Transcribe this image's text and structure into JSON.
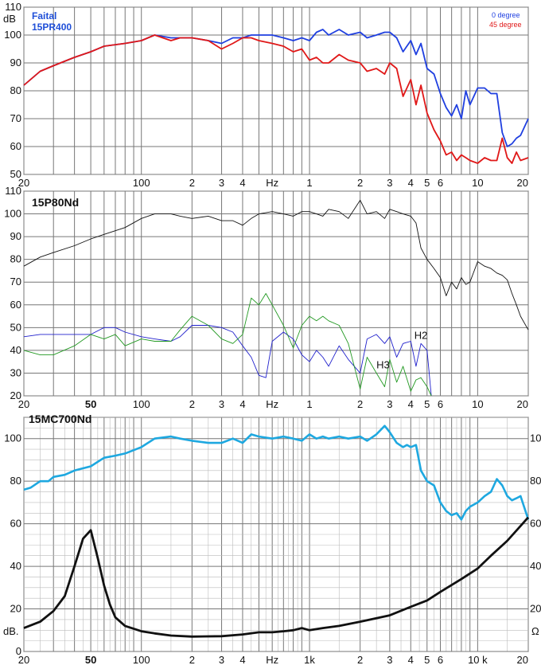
{
  "chart_data": [
    {
      "type": "line",
      "title": "Faital\n15PR400",
      "title_lines": [
        "Faital",
        "15PR400"
      ],
      "ylabel": "dB",
      "ylim": [
        50,
        110
      ],
      "xscale": "log",
      "xlim": [
        20,
        20000
      ],
      "grid": true,
      "legend_placement": "top-right",
      "y_ticks": [
        "50",
        "60",
        "70",
        "80",
        "90",
        "100",
        "110"
      ],
      "x_ticks": [
        {
          "v": 20,
          "t": "20"
        },
        {
          "v": 100,
          "t": "100"
        },
        {
          "v": 200,
          "t": "2"
        },
        {
          "v": 300,
          "t": "3"
        },
        {
          "v": 400,
          "t": "4"
        },
        {
          "v": 600,
          "t": "Hz"
        },
        {
          "v": 1000,
          "t": "1"
        },
        {
          "v": 2000,
          "t": "2"
        },
        {
          "v": 3000,
          "t": "3"
        },
        {
          "v": 4000,
          "t": "4"
        },
        {
          "v": 5000,
          "t": "5"
        },
        {
          "v": 6000,
          "t": "6"
        },
        {
          "v": 10000,
          "t": "10"
        },
        {
          "v": 20000,
          "t": "20"
        }
      ],
      "series": [
        {
          "name": "0 degree",
          "color": "#1f3fe0",
          "x": [
            20,
            25,
            30,
            40,
            50,
            60,
            80,
            100,
            120,
            150,
            170,
            200,
            250,
            300,
            350,
            400,
            450,
            500,
            600,
            700,
            800,
            900,
            1000,
            1100,
            1200,
            1300,
            1500,
            1700,
            2000,
            2200,
            2500,
            2800,
            3000,
            3300,
            3600,
            4000,
            4300,
            4600,
            5000,
            5500,
            6000,
            6500,
            7000,
            7500,
            8000,
            8500,
            9000,
            10000,
            11000,
            12000,
            13000,
            14000,
            15000,
            16000,
            17000,
            18000,
            20000
          ],
          "values": [
            82,
            87,
            89,
            92,
            94,
            96,
            97,
            98,
            100,
            99,
            99,
            99,
            98,
            97,
            99,
            99,
            100,
            100,
            100,
            99,
            98,
            99,
            98,
            101,
            102,
            100,
            102,
            100,
            101,
            99,
            100,
            101,
            101,
            99,
            94,
            98,
            93,
            97,
            88,
            86,
            79,
            74,
            71,
            75,
            70,
            80,
            75,
            81,
            81,
            79,
            79,
            65,
            60,
            61,
            63,
            64,
            70
          ]
        },
        {
          "name": "45 degree",
          "color": "#e01818",
          "x": [
            20,
            25,
            30,
            40,
            50,
            60,
            80,
            100,
            120,
            150,
            170,
            200,
            250,
            300,
            350,
            400,
            450,
            500,
            600,
            700,
            800,
            900,
            1000,
            1100,
            1200,
            1300,
            1500,
            1700,
            2000,
            2200,
            2500,
            2800,
            3000,
            3300,
            3600,
            4000,
            4300,
            4600,
            5000,
            5500,
            6000,
            6500,
            7000,
            7500,
            8000,
            8500,
            9000,
            10000,
            11000,
            12000,
            13000,
            14000,
            15000,
            16000,
            17000,
            18000,
            20000
          ],
          "values": [
            82,
            87,
            89,
            92,
            94,
            96,
            97,
            98,
            100,
            98,
            99,
            99,
            98,
            95,
            97,
            99,
            99,
            98,
            97,
            96,
            94,
            95,
            91,
            92,
            90,
            90,
            93,
            91,
            90,
            87,
            88,
            86,
            90,
            88,
            78,
            84,
            75,
            82,
            72,
            66,
            62,
            57,
            58,
            55,
            57,
            56,
            55,
            54,
            56,
            55,
            55,
            63,
            56,
            54,
            58,
            55,
            56
          ]
        }
      ]
    },
    {
      "type": "line",
      "title": "15P80Nd",
      "ylim": [
        20,
        110
      ],
      "xscale": "log",
      "xlim": [
        20,
        20000
      ],
      "grid": true,
      "y_ticks": [
        "20",
        "30",
        "40",
        "50",
        "60",
        "70",
        "80",
        "90",
        "100",
        "110"
      ],
      "x_ticks": [
        {
          "v": 20,
          "t": "20",
          "b": false
        },
        {
          "v": 50,
          "t": "50",
          "b": true
        },
        {
          "v": 100,
          "t": "100",
          "b": false
        },
        {
          "v": 200,
          "t": "2",
          "b": false
        },
        {
          "v": 300,
          "t": "3",
          "b": false
        },
        {
          "v": 400,
          "t": "4",
          "b": false
        },
        {
          "v": 600,
          "t": "Hz",
          "b": false
        },
        {
          "v": 1000,
          "t": "1",
          "b": false
        },
        {
          "v": 2000,
          "t": "2",
          "b": false
        },
        {
          "v": 3000,
          "t": "3",
          "b": false
        },
        {
          "v": 4000,
          "t": "4",
          "b": false
        },
        {
          "v": 5000,
          "t": "5",
          "b": false
        },
        {
          "v": 6000,
          "t": "6",
          "b": false
        },
        {
          "v": 10000,
          "t": "10",
          "b": false
        },
        {
          "v": 20000,
          "t": "20",
          "b": false
        }
      ],
      "annotations": [
        {
          "text": "H2",
          "x": 4200,
          "y": 45
        },
        {
          "text": "H3",
          "x": 2500,
          "y": 32
        }
      ],
      "series": [
        {
          "color": "#111111",
          "x": [
            20,
            25,
            30,
            40,
            50,
            60,
            80,
            100,
            120,
            150,
            170,
            200,
            250,
            300,
            350,
            400,
            450,
            500,
            600,
            700,
            800,
            900,
            1000,
            1100,
            1200,
            1300,
            1500,
            1700,
            2000,
            2200,
            2500,
            2800,
            3000,
            3300,
            3600,
            4000,
            4300,
            4600,
            5000,
            5500,
            6000,
            6500,
            7000,
            7500,
            8000,
            8500,
            9000,
            10000,
            11000,
            12000,
            13000,
            14000,
            15000,
            16000,
            17000,
            18000,
            20000
          ],
          "values": [
            77,
            81,
            83,
            86,
            89,
            91,
            94,
            98,
            100,
            100,
            99,
            98,
            99,
            97,
            97,
            95,
            98,
            100,
            101,
            100,
            99,
            101,
            101,
            100,
            99,
            102,
            101,
            98,
            106,
            100,
            101,
            98,
            102,
            101,
            100,
            99,
            96,
            85,
            80,
            76,
            72,
            64,
            70,
            67,
            72,
            69,
            70,
            79,
            77,
            76,
            74,
            73,
            71,
            65,
            60,
            55,
            49
          ]
        },
        {
          "color": "#2020cc",
          "x": [
            20,
            25,
            30,
            40,
            50,
            60,
            70,
            80,
            100,
            120,
            150,
            170,
            200,
            250,
            300,
            350,
            400,
            450,
            500,
            550,
            600,
            700,
            800,
            900,
            1000,
            1100,
            1200,
            1300,
            1500,
            1700,
            2000,
            2200,
            2500,
            2800,
            3000,
            3300,
            3600,
            4000,
            4300,
            4600,
            5000,
            5300
          ],
          "values": [
            46,
            47,
            47,
            47,
            47,
            50,
            50,
            48,
            46,
            45,
            44,
            46,
            51,
            51,
            50,
            48,
            42,
            37,
            29,
            28,
            44,
            48,
            45,
            38,
            35,
            40,
            37,
            33,
            42,
            36,
            30,
            45,
            47,
            43,
            46,
            37,
            43,
            44,
            33,
            43,
            40,
            20
          ]
        },
        {
          "color": "#229922",
          "x": [
            20,
            25,
            30,
            40,
            50,
            60,
            70,
            80,
            100,
            120,
            150,
            170,
            200,
            250,
            300,
            350,
            400,
            450,
            500,
            550,
            600,
            700,
            800,
            900,
            1000,
            1100,
            1200,
            1300,
            1500,
            1700,
            2000,
            2200,
            2500,
            2800,
            3000,
            3300,
            3600,
            4000,
            4300,
            4600,
            5000,
            5300
          ],
          "values": [
            40,
            38,
            38,
            42,
            47,
            45,
            47,
            42,
            45,
            44,
            44,
            49,
            55,
            51,
            45,
            43,
            47,
            63,
            60,
            65,
            60,
            51,
            41,
            51,
            55,
            53,
            55,
            53,
            51,
            43,
            23,
            37,
            30,
            24,
            36,
            26,
            33,
            22,
            27,
            28,
            24,
            20
          ]
        }
      ]
    },
    {
      "type": "line",
      "title": "15MC700Nd",
      "ylabel": "dB.",
      "ylabel_right": "Ω",
      "ylim": [
        0,
        110
      ],
      "xscale": "log",
      "xlim": [
        20,
        20000
      ],
      "grid": true,
      "y_ticks": [
        "0",
        "20",
        "40",
        "60",
        "80",
        "100"
      ],
      "y_ticks_right": [
        "20",
        "40",
        "60",
        "80",
        "10"
      ],
      "x_ticks": [
        {
          "v": 20,
          "t": "20",
          "b": false
        },
        {
          "v": 50,
          "t": "50",
          "b": true
        },
        {
          "v": 100,
          "t": "100",
          "b": false
        },
        {
          "v": 200,
          "t": "2",
          "b": false
        },
        {
          "v": 300,
          "t": "3",
          "b": false
        },
        {
          "v": 400,
          "t": "4",
          "b": false
        },
        {
          "v": 600,
          "t": "Hz",
          "b": false
        },
        {
          "v": 1000,
          "t": "1k",
          "b": false
        },
        {
          "v": 2000,
          "t": "2",
          "b": false
        },
        {
          "v": 3000,
          "t": "3",
          "b": false
        },
        {
          "v": 4000,
          "t": "4",
          "b": false
        },
        {
          "v": 5000,
          "t": "5",
          "b": false
        },
        {
          "v": 6000,
          "t": "6",
          "b": false
        },
        {
          "v": 10000,
          "t": "10 k",
          "b": false
        },
        {
          "v": 20000,
          "t": "20",
          "b": false
        }
      ],
      "series": [
        {
          "color": "#1ea8e0",
          "x": [
            20,
            22,
            25,
            28,
            30,
            35,
            40,
            50,
            60,
            70,
            80,
            100,
            120,
            150,
            170,
            200,
            250,
            300,
            350,
            400,
            450,
            500,
            600,
            700,
            800,
            900,
            1000,
            1100,
            1200,
            1300,
            1500,
            1700,
            2000,
            2200,
            2500,
            2800,
            3000,
            3300,
            3600,
            3800,
            4000,
            4300,
            4600,
            5000,
            5500,
            6000,
            6500,
            7000,
            7500,
            8000,
            8500,
            9000,
            10000,
            11000,
            12000,
            13000,
            14000,
            15000,
            16000,
            17000,
            18000,
            20000
          ],
          "values": [
            76,
            77,
            80,
            80,
            82,
            83,
            85,
            87,
            91,
            92,
            93,
            96,
            100,
            101,
            100,
            99,
            98,
            98,
            100,
            98,
            102,
            101,
            100,
            101,
            100,
            99,
            102,
            100,
            101,
            100,
            101,
            100,
            101,
            99,
            102,
            106,
            103,
            98,
            96,
            97,
            96,
            97,
            85,
            80,
            78,
            70,
            66,
            64,
            65,
            62,
            66,
            68,
            70,
            73,
            75,
            81,
            78,
            73,
            71,
            72,
            73,
            62
          ]
        },
        {
          "color": "#111111",
          "x": [
            20,
            25,
            30,
            35,
            40,
            45,
            50,
            55,
            60,
            65,
            70,
            80,
            100,
            120,
            150,
            200,
            300,
            400,
            500,
            600,
            700,
            800,
            900,
            1000,
            1200,
            1500,
            2000,
            3000,
            4000,
            5000,
            6000,
            8000,
            10000,
            12000,
            15000,
            20000
          ],
          "values": [
            11,
            14,
            19,
            26,
            40,
            53,
            57,
            44,
            31,
            22,
            16,
            12,
            9.5,
            8.5,
            7.5,
            7,
            7.2,
            8,
            9,
            9,
            9.5,
            10,
            11,
            10,
            11,
            12,
            14,
            17,
            21,
            24,
            28,
            34,
            39,
            45,
            52,
            63
          ]
        }
      ]
    }
  ]
}
